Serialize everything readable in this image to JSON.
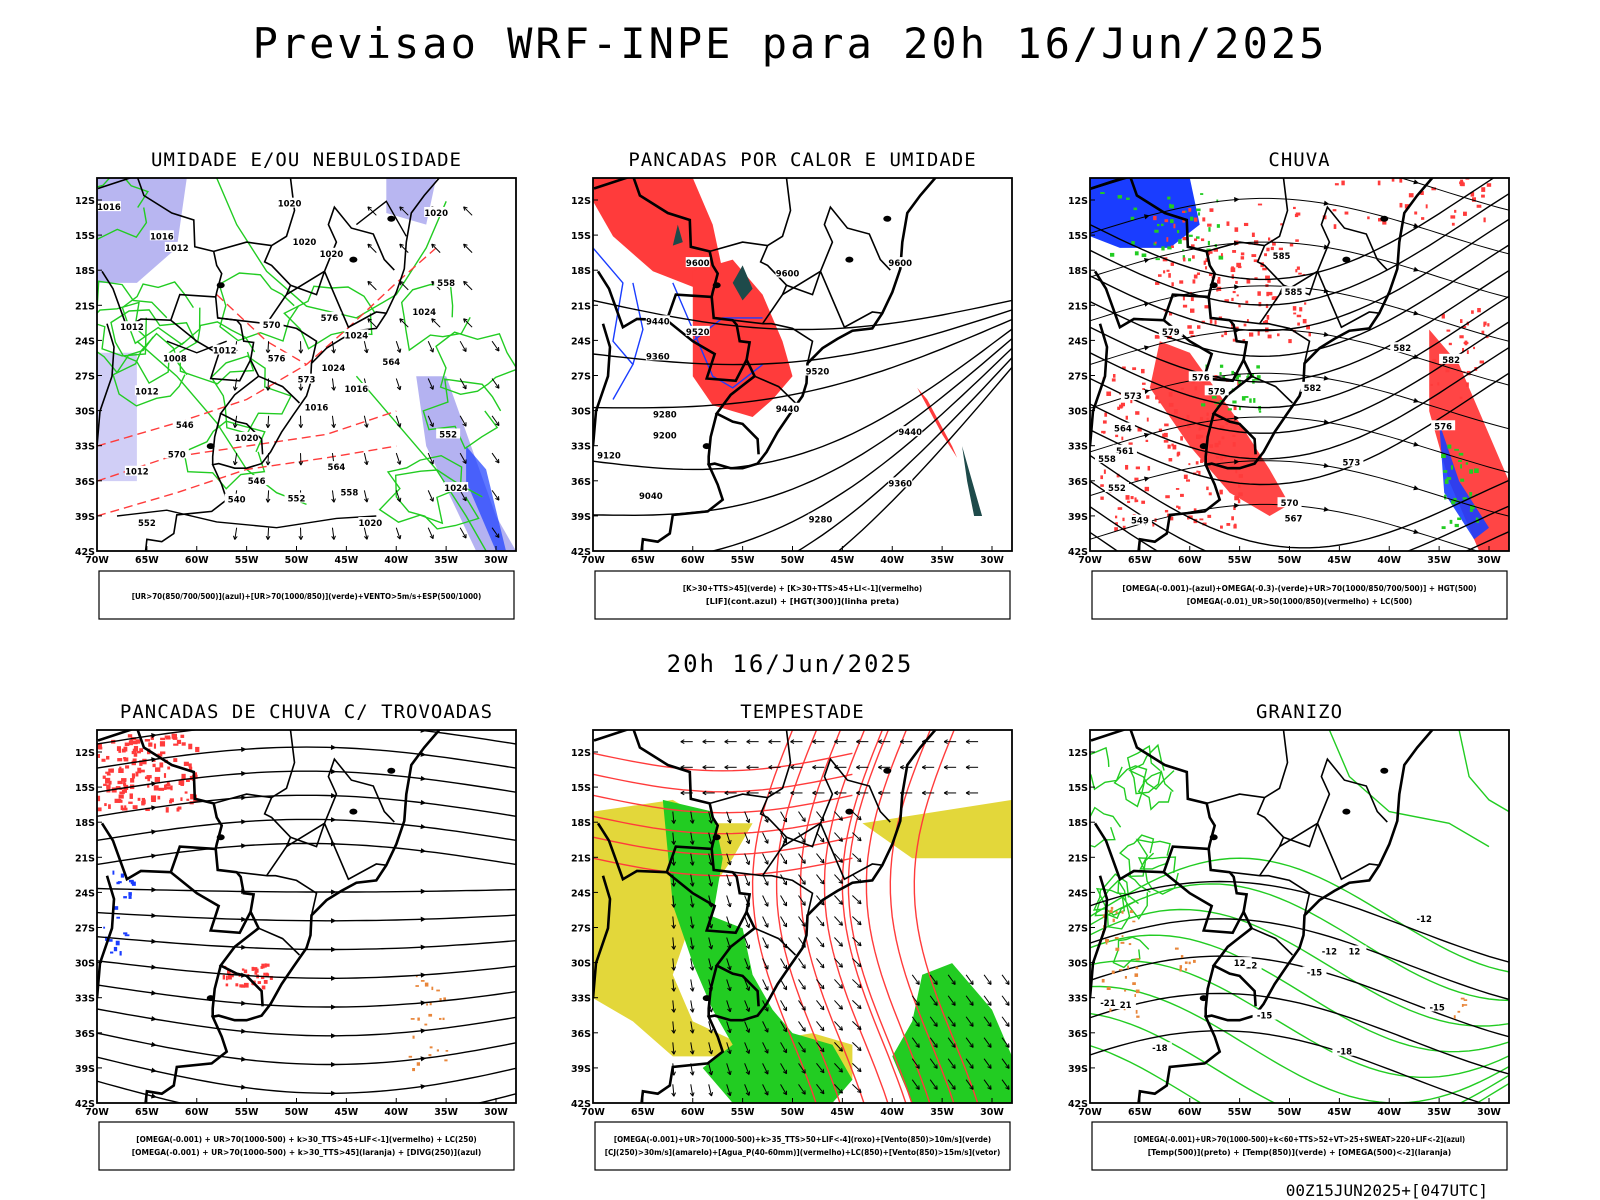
{
  "main_title": "Previsao WRF-INPE  para 20h 16/Jun/2025",
  "mid_title": "20h 16/Jun/2025",
  "footer_stamp": "00Z15JUN2025+[047UTC]",
  "axes": {
    "lat_labels": [
      "12S",
      "15S",
      "18S",
      "21S",
      "24S",
      "27S",
      "30S",
      "33S",
      "36S",
      "39S",
      "42S"
    ],
    "lon_labels": [
      "70W",
      "65W",
      "60W",
      "55W",
      "50W",
      "45W",
      "40W",
      "35W",
      "30W"
    ]
  },
  "colors": {
    "green": "#22cc22",
    "red": "#ff3b3b",
    "blue": "#1a3dff",
    "lavender": "#b0aef0",
    "yellow": "#e3d73a",
    "orange": "#e8863a",
    "dark_teal": "#1e4a4a"
  },
  "panels": [
    {
      "title": "UMIDADE E/OU NEBULOSIDADE",
      "legend": [
        "[UR>70(850/700/500)](azul)+[UR>70(1000/850)](verde)+VENTO>5m/s+ESP(500/1000)"
      ],
      "contour_labels": [
        "1016",
        "1016",
        "1020",
        "1020",
        "1020",
        "1012",
        "1012",
        "1008",
        "1012",
        "1012",
        "1020",
        "1024",
        "1024",
        "1020",
        "1012",
        "1016",
        "1016",
        "1024",
        "1020",
        "1024",
        "570",
        "576",
        "576",
        "573",
        "570",
        "564",
        "558",
        "552",
        "546",
        "540",
        "552",
        "558",
        "564",
        "552",
        "546"
      ]
    },
    {
      "title": "PANCADAS POR CALOR E UMIDADE",
      "legend": [
        "[K>30+TTS>45](verde) + [K>30+TTS>45+LI<-1](vermelho)",
        "[LIF](cont.azul) + [HGT(300)](linha preta)"
      ],
      "contour_labels": [
        "9600",
        "9600",
        "9600",
        "9520",
        "9520",
        "9440",
        "9440",
        "9440",
        "9360",
        "9360",
        "9280",
        "9280",
        "9200",
        "9120",
        "9040"
      ]
    },
    {
      "title": "CHUVA",
      "legend": [
        "[OMEGA(-0.001)-(azul)+OMEGA(-0.3)-(verde)+UR>70(1000/850/700/500)] + HGT(500)",
        "[OMEGA(-0.01)_UR>50(1000/850)(vermelho) + LC(500)"
      ],
      "contour_labels": [
        "585",
        "585",
        "582",
        "582",
        "582",
        "579",
        "579",
        "576",
        "576",
        "573",
        "573",
        "570",
        "567",
        "564",
        "561",
        "558",
        "552",
        "549"
      ]
    },
    {
      "title": "PANCADAS DE CHUVA C/ TROVOADAS",
      "legend": [
        "[OMEGA(-0.001) + UR>70(1000-500) + k>30_TTS>45+LIF<-1](vermelho) + LC(250)",
        "[OMEGA(-0.001) + UR>70(1000-500) + k>30_TTS>45](laranja) + [DIVG(250)](azul)"
      ],
      "contour_labels": []
    },
    {
      "title": "TEMPESTADE",
      "legend": [
        "[OMEGA(-0.001)+UR>70(1000-500)+k>35_TTS>50+LIF<-4](roxo)+[Vento(850)>10m/s](verde)",
        "[CJ(250)>30m/s](amarelo)+[Agua_P(40-60mm)](vermelho)+LC(850)+[Vento(850)>15m/s](vetor)"
      ],
      "contour_labels": []
    },
    {
      "title": "GRANIZO",
      "legend": [
        "[OMEGA(-0.001)+UR>70(1000-500)+k<60+TTS>52+VT>25+SWEAT>220+LIF<-2](azul)",
        "[Temp(500)](preto) + [Temp(850)](verde) + [OMEGA(500)<-2](laranja)"
      ],
      "contour_labels": [
        "-12",
        "-12",
        "-12",
        "-15",
        "-15",
        "-15",
        "-18",
        "-18",
        "-21",
        "-21",
        "12",
        "12"
      ]
    }
  ]
}
